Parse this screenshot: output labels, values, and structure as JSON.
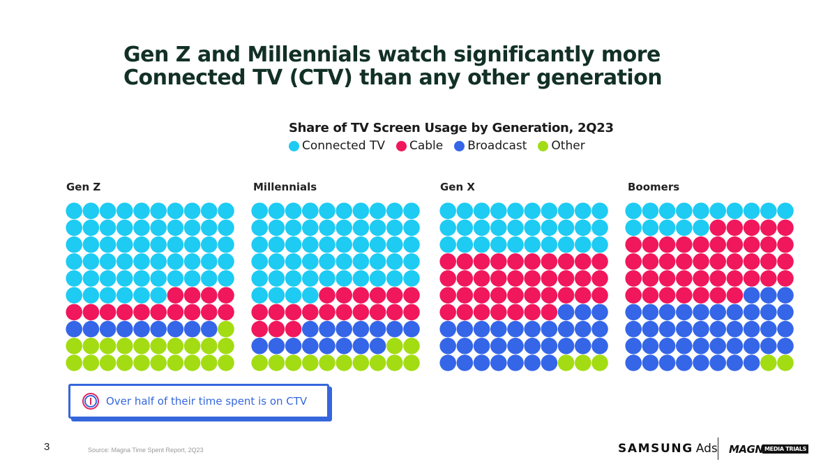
{
  "title": "Gen Z and Millennials watch significantly more Connected TV (CTV) than any other generation",
  "chart_data": {
    "type": "waffle",
    "title": "Share of TV Screen Usage by Generation, 2Q23",
    "unit": "percent (each dot = 1%)",
    "legend": [
      {
        "name": "Connected TV",
        "color": "#1ecbf2"
      },
      {
        "name": "Cable",
        "color": "#f0175c"
      },
      {
        "name": "Broadcast",
        "color": "#3566e8"
      },
      {
        "name": "Other",
        "color": "#a3dc13"
      }
    ],
    "categories": [
      "Gen Z",
      "Millennials",
      "Gen X",
      "Boomers"
    ],
    "series": [
      {
        "name": "Connected TV",
        "values": [
          56,
          54,
          30,
          15
        ]
      },
      {
        "name": "Cable",
        "values": [
          14,
          19,
          37,
          42
        ]
      },
      {
        "name": "Broadcast",
        "values": [
          9,
          15,
          30,
          41
        ]
      },
      {
        "name": "Other",
        "values": [
          21,
          12,
          3,
          2
        ]
      }
    ]
  },
  "callout": {
    "text": "Over half of their time spent is on CTV"
  },
  "footer": {
    "page_number": "3",
    "source": "Source: Magna Time Spent Report, 2Q23",
    "samsung_logo": "SAMSUNG",
    "samsung_ads": "Ads",
    "magna_logo": "MAGNA",
    "mediatrials_logo": "MEDIA TRIALS"
  }
}
